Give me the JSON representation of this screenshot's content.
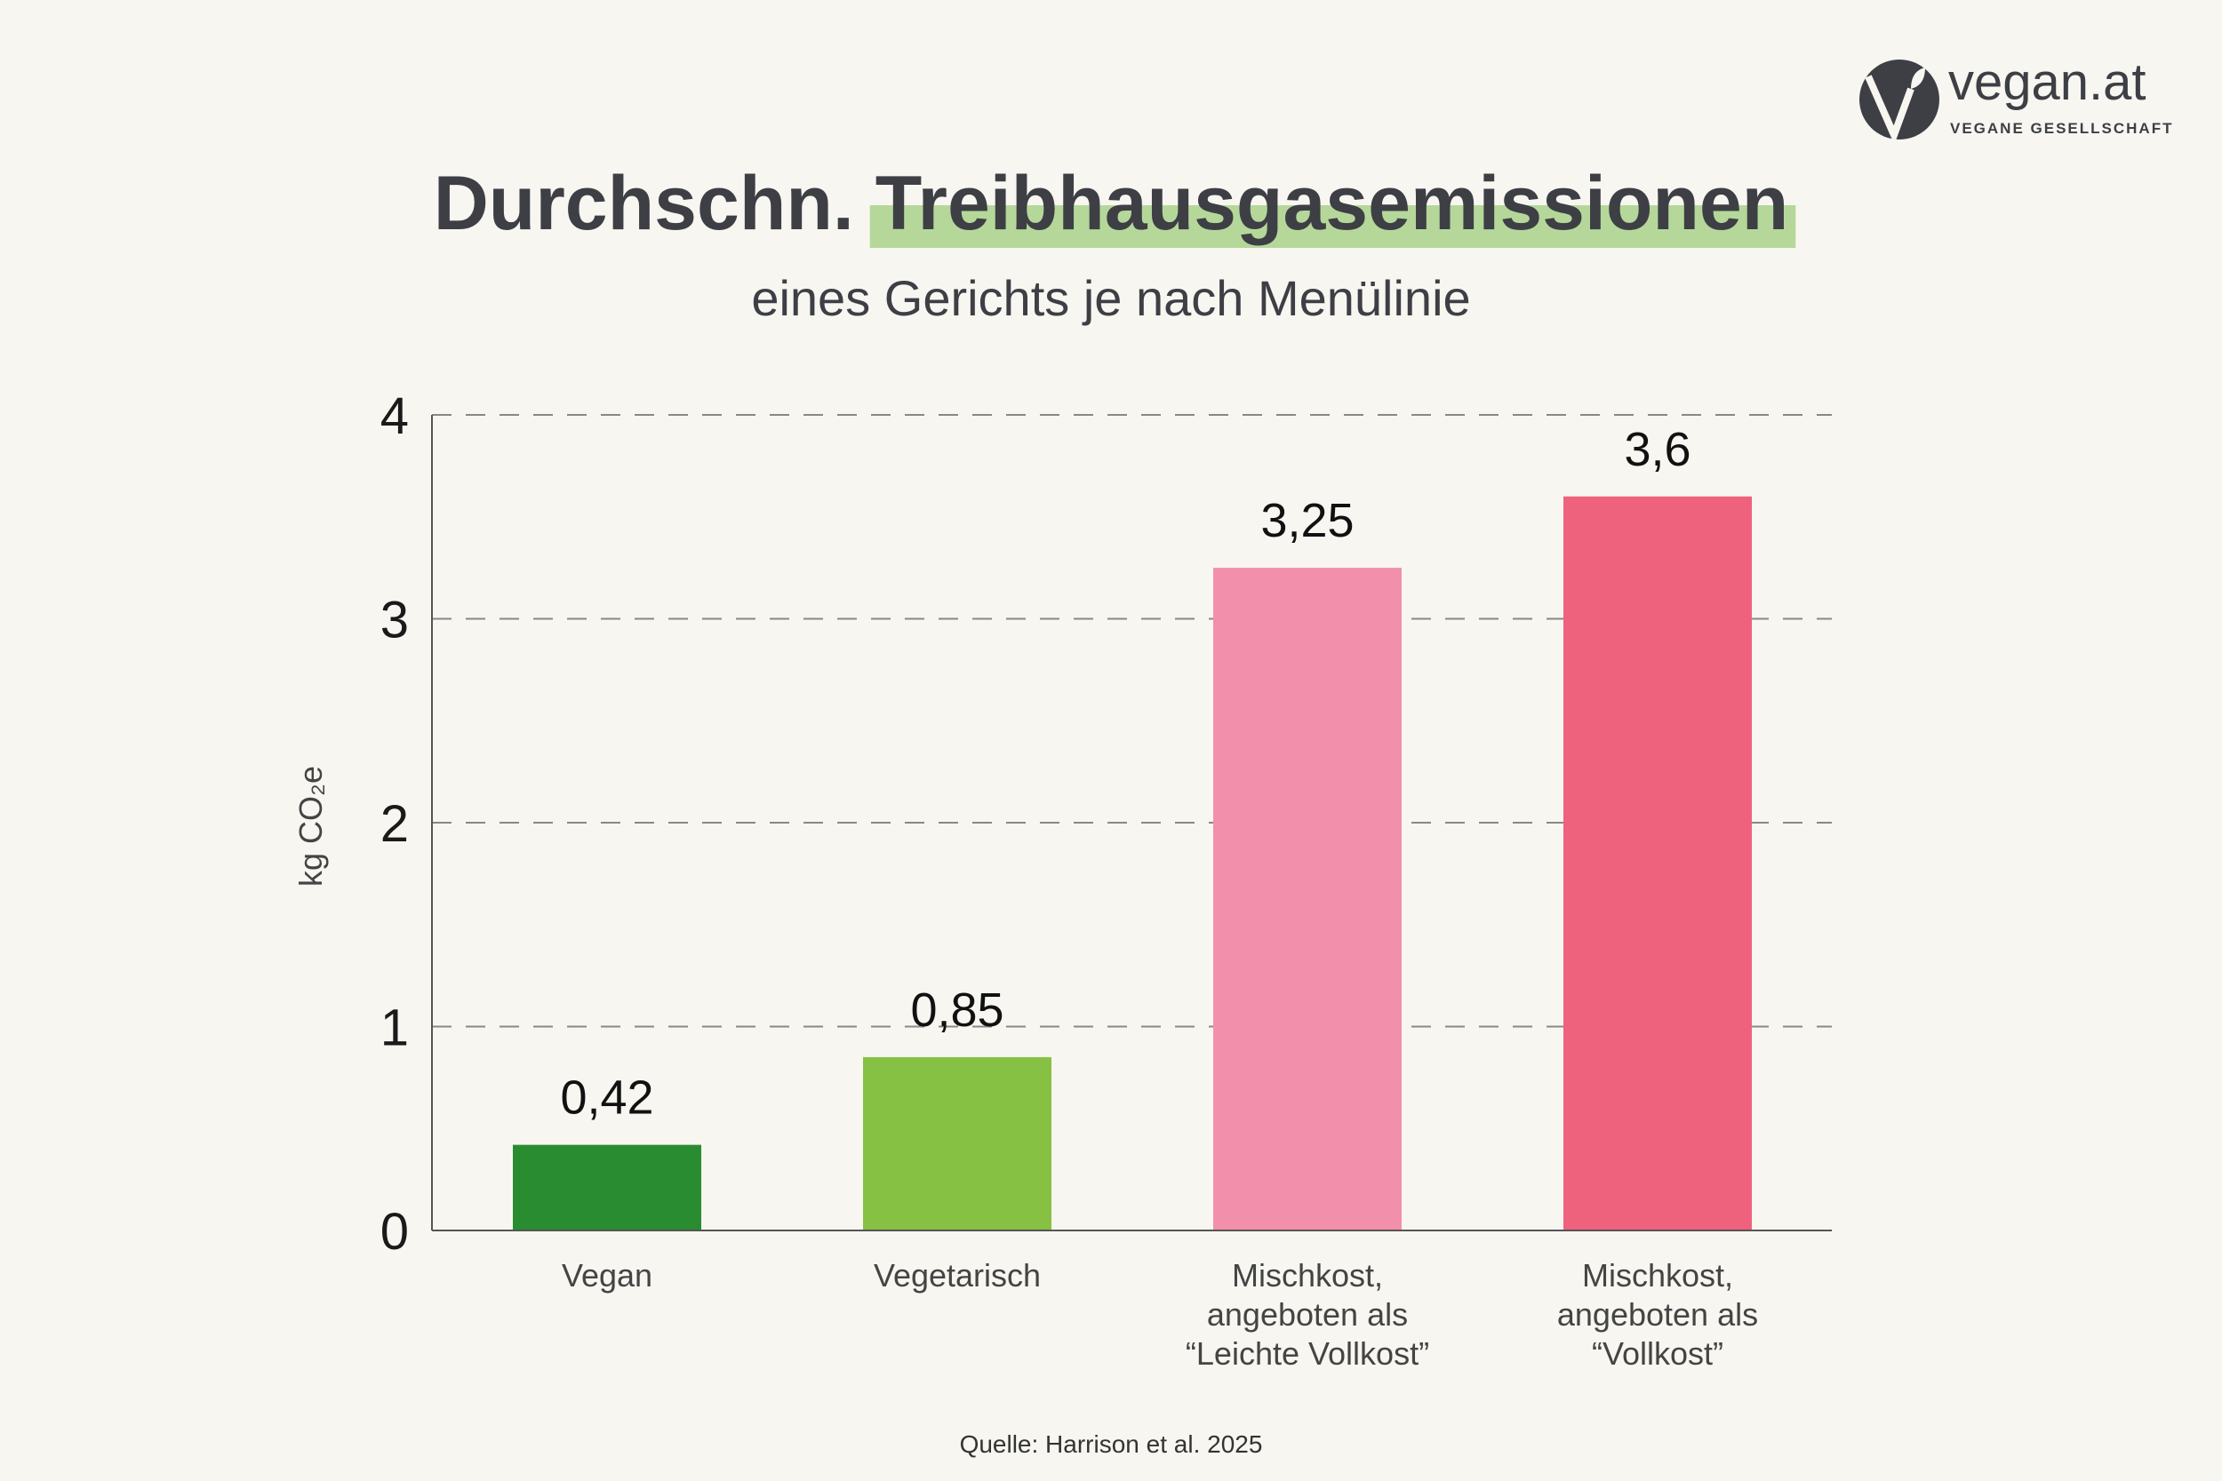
{
  "logo": {
    "name": "vegan.at",
    "tagline": "VEGANE GESELLSCHAFT"
  },
  "colors": {
    "background": "#f7f6f1",
    "text": "#3d3f45",
    "highlight": "#b5d89a"
  },
  "chart_data": {
    "type": "bar",
    "title_part1": "Durchschn.",
    "title_part2": "Treibhausgasemissionen",
    "subtitle": "eines Gerichts je nach Menülinie",
    "ylabel": "kg CO₂e",
    "ylim": [
      0,
      4
    ],
    "yticks": [
      "0",
      "1",
      "2",
      "3",
      "4"
    ],
    "grid": "horizontal dashed",
    "categories": [
      [
        "Vegan"
      ],
      [
        "Vegetarisch"
      ],
      [
        "Mischkost,",
        "angeboten als",
        "“Leichte Vollkost”"
      ],
      [
        "Mischkost,",
        "angeboten als",
        "“Vollkost”"
      ]
    ],
    "values": [
      0.42,
      0.85,
      3.25,
      3.6
    ],
    "value_labels": [
      "0,42",
      "0,85",
      "3,25",
      "3,6"
    ],
    "bar_colors": [
      "#2a8c31",
      "#86c144",
      "#f28fab",
      "#ee627d"
    ],
    "source": "Quelle:  Harrison et al. 2025"
  }
}
